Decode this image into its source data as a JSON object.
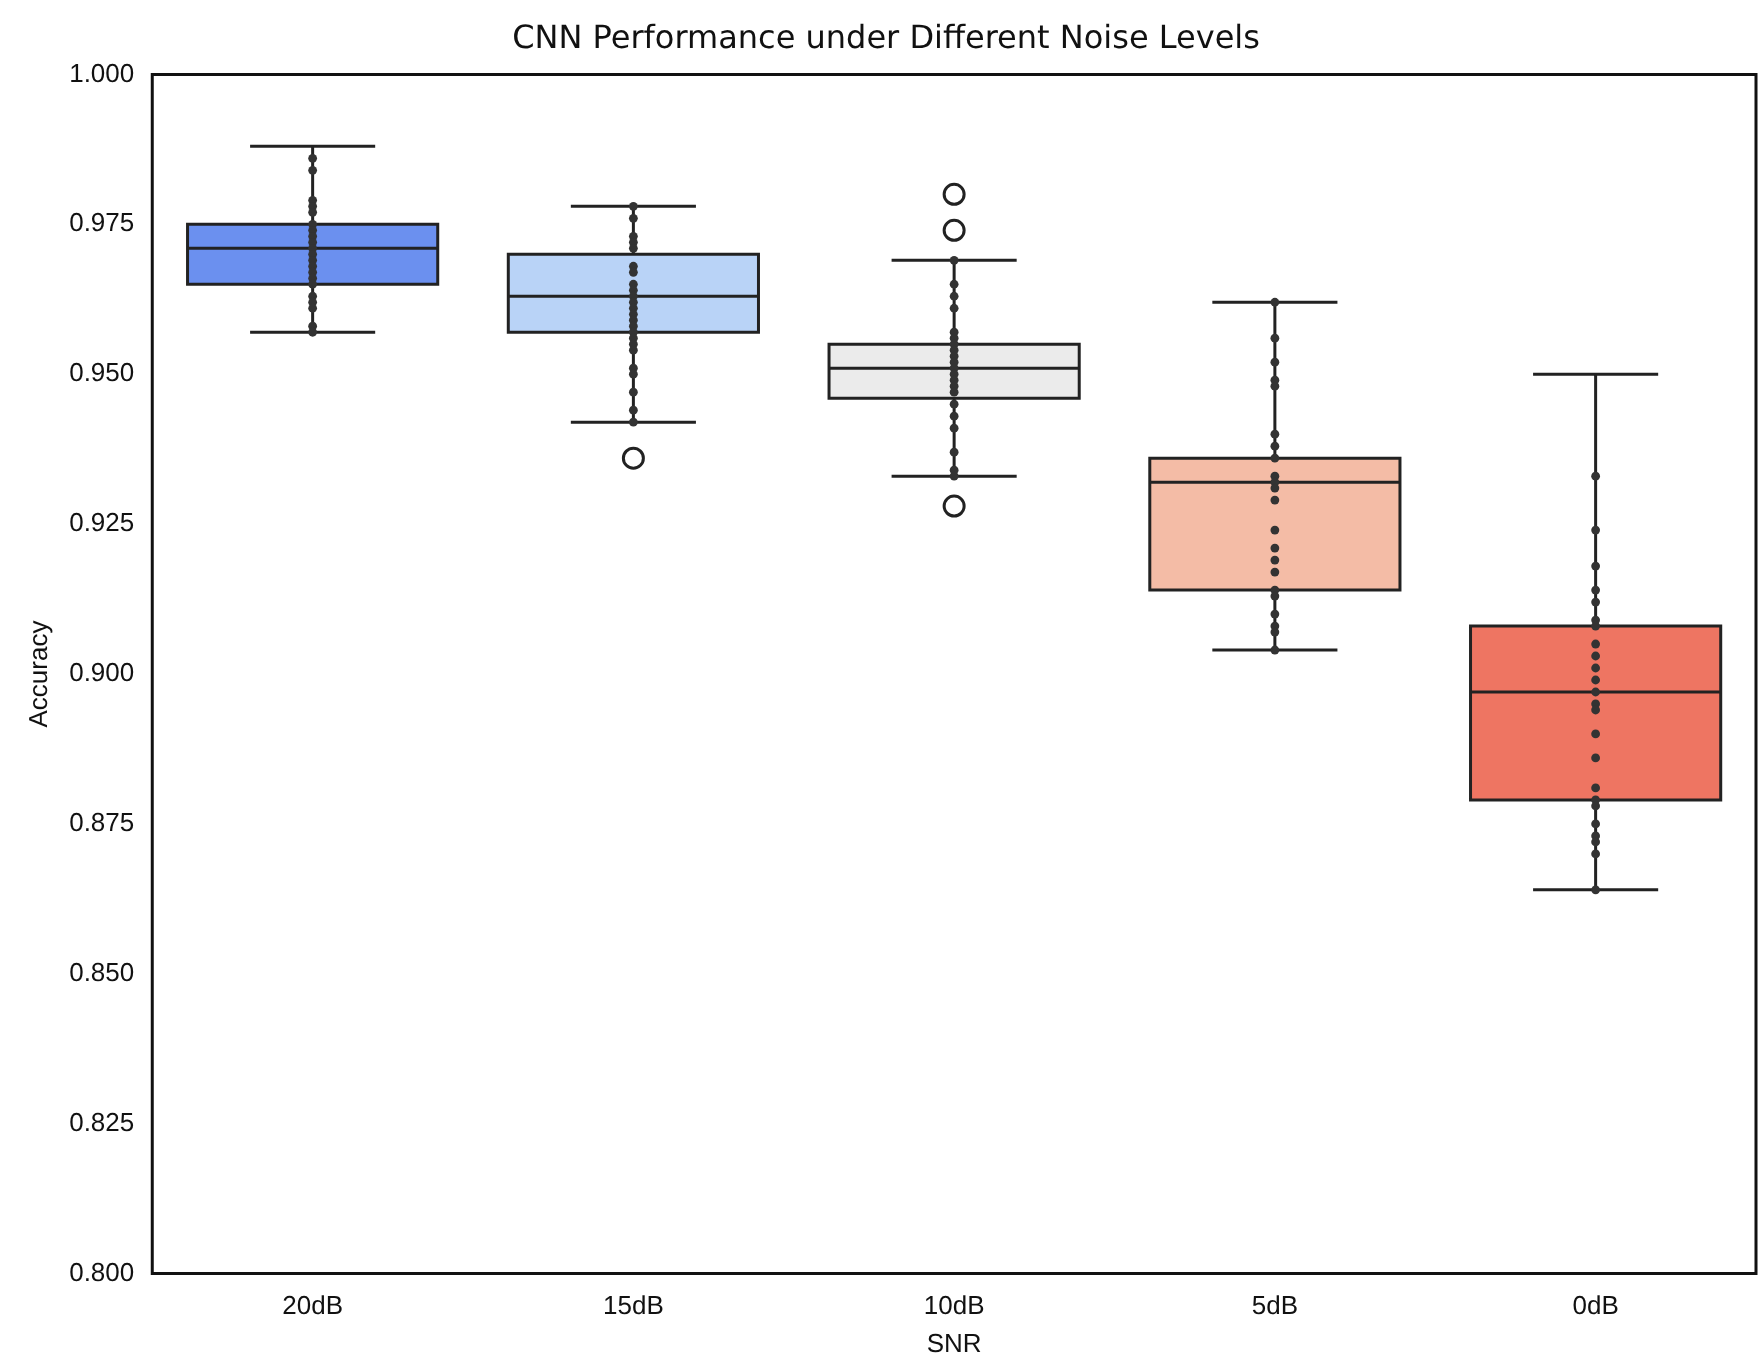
{
  "chart_data": {
    "type": "box",
    "title": "CNN Performance under Different Noise Levels",
    "xlabel": "SNR",
    "ylabel": "Accuracy",
    "categories": [
      "20dB",
      "15dB",
      "10dB",
      "5dB",
      "0dB"
    ],
    "colors": [
      "#6b90ef",
      "#b9d3f7",
      "#ebebeb",
      "#f4bca6",
      "#ee7562"
    ],
    "boxes": [
      {
        "low": 0.957,
        "q1": 0.965,
        "median": 0.971,
        "q3": 0.975,
        "high": 0.988
      },
      {
        "low": 0.942,
        "q1": 0.957,
        "median": 0.963,
        "q3": 0.97,
        "high": 0.978,
        "outliers": [
          0.936
        ]
      },
      {
        "low": 0.933,
        "q1": 0.946,
        "median": 0.951,
        "q3": 0.955,
        "high": 0.969,
        "outliers": [
          0.98,
          0.974,
          0.928
        ]
      },
      {
        "low": 0.904,
        "q1": 0.914,
        "median": 0.932,
        "q3": 0.936,
        "high": 0.962
      },
      {
        "low": 0.864,
        "q1": 0.879,
        "median": 0.897,
        "q3": 0.908,
        "high": 0.95
      }
    ],
    "series": [
      {
        "type": "scatter",
        "color": "#333333",
        "x": [
          "20dB",
          "20dB",
          "20dB",
          "20dB",
          "20dB",
          "20dB",
          "20dB",
          "20dB",
          "20dB",
          "20dB",
          "20dB",
          "20dB",
          "20dB",
          "20dB",
          "20dB",
          "20dB",
          "20dB",
          "20dB",
          "20dB",
          "20dB",
          "20dB"
        ],
        "values": [
          0.986,
          0.984,
          0.979,
          0.978,
          0.977,
          0.975,
          0.974,
          0.973,
          0.972,
          0.971,
          0.97,
          0.969,
          0.968,
          0.967,
          0.966,
          0.965,
          0.963,
          0.962,
          0.961,
          0.958,
          0.957
        ]
      },
      {
        "type": "scatter",
        "color": "#333333",
        "x": [
          "15dB",
          "15dB",
          "15dB",
          "15dB",
          "15dB",
          "15dB",
          "15dB",
          "15dB",
          "15dB",
          "15dB",
          "15dB",
          "15dB",
          "15dB",
          "15dB",
          "15dB",
          "15dB",
          "15dB",
          "15dB",
          "15dB",
          "15dB",
          "15dB",
          "15dB",
          "15dB",
          "15dB"
        ],
        "values": [
          0.978,
          0.976,
          0.973,
          0.972,
          0.971,
          0.968,
          0.967,
          0.965,
          0.964,
          0.963,
          0.962,
          0.961,
          0.96,
          0.959,
          0.958,
          0.957,
          0.956,
          0.955,
          0.954,
          0.951,
          0.95,
          0.947,
          0.944,
          0.942
        ]
      },
      {
        "type": "scatter",
        "color": "#333333",
        "x": [
          "10dB",
          "10dB",
          "10dB",
          "10dB",
          "10dB",
          "10dB",
          "10dB",
          "10dB",
          "10dB",
          "10dB",
          "10dB",
          "10dB",
          "10dB",
          "10dB",
          "10dB",
          "10dB",
          "10dB",
          "10dB",
          "10dB",
          "10dB",
          "10dB"
        ],
        "values": [
          0.969,
          0.965,
          0.963,
          0.961,
          0.957,
          0.956,
          0.955,
          0.954,
          0.953,
          0.952,
          0.951,
          0.95,
          0.949,
          0.948,
          0.947,
          0.945,
          0.943,
          0.941,
          0.937,
          0.934,
          0.933
        ]
      },
      {
        "type": "scatter",
        "color": "#333333",
        "x": [
          "5dB",
          "5dB",
          "5dB",
          "5dB",
          "5dB",
          "5dB",
          "5dB",
          "5dB",
          "5dB",
          "5dB",
          "5dB",
          "5dB",
          "5dB",
          "5dB",
          "5dB",
          "5dB",
          "5dB",
          "5dB",
          "5dB",
          "5dB",
          "5dB",
          "5dB"
        ],
        "values": [
          0.962,
          0.956,
          0.952,
          0.949,
          0.948,
          0.94,
          0.938,
          0.936,
          0.933,
          0.932,
          0.931,
          0.929,
          0.924,
          0.921,
          0.919,
          0.917,
          0.914,
          0.913,
          0.91,
          0.908,
          0.907,
          0.904
        ]
      },
      {
        "type": "scatter",
        "color": "#333333",
        "x": [
          "0dB",
          "0dB",
          "0dB",
          "0dB",
          "0dB",
          "0dB",
          "0dB",
          "0dB",
          "0dB",
          "0dB",
          "0dB",
          "0dB",
          "0dB",
          "0dB",
          "0dB",
          "0dB",
          "0dB",
          "0dB",
          "0dB",
          "0dB",
          "0dB",
          "0dB",
          "0dB",
          "0dB"
        ],
        "values": [
          0.933,
          0.924,
          0.918,
          0.914,
          0.912,
          0.909,
          0.908,
          0.905,
          0.903,
          0.901,
          0.899,
          0.897,
          0.895,
          0.894,
          0.89,
          0.886,
          0.881,
          0.879,
          0.878,
          0.875,
          0.873,
          0.872,
          0.87,
          0.864
        ]
      }
    ],
    "marker": "circle",
    "ylim": [
      0.8,
      1.0
    ],
    "yticks": [
      {
        "value": 0.8,
        "label": "0.800"
      },
      {
        "value": 0.825,
        "label": "0.825"
      },
      {
        "value": 0.85,
        "label": "0.850"
      },
      {
        "value": 0.875,
        "label": "0.875"
      },
      {
        "value": 0.9,
        "label": "0.900"
      },
      {
        "value": 0.925,
        "label": "0.925"
      },
      {
        "value": 0.95,
        "label": "0.950"
      },
      {
        "value": 0.975,
        "label": "0.975"
      },
      {
        "value": 1.0,
        "label": "1.000"
      }
    ]
  }
}
